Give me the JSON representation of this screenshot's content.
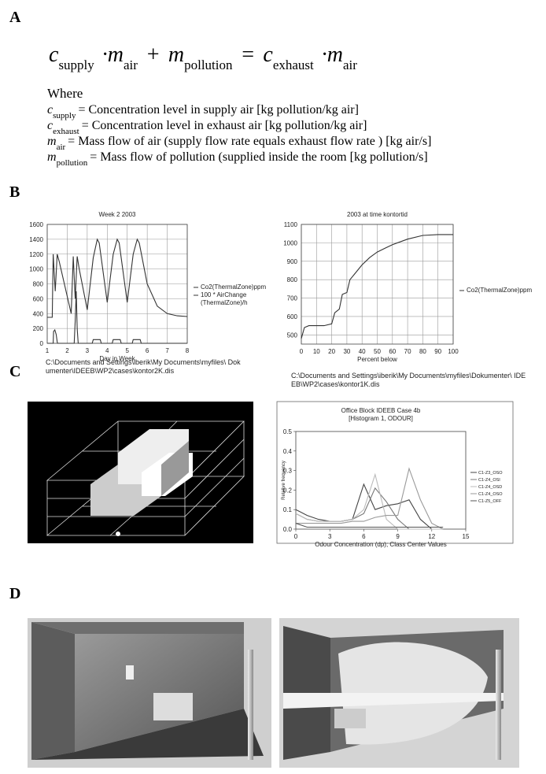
{
  "panels": {
    "a": "A",
    "b": "B",
    "c": "C",
    "d": "D"
  },
  "equation": [
    {
      "text": "c",
      "sub": "supply"
    },
    {
      "text": "·m",
      "sub": "air"
    },
    {
      "text": "+"
    },
    {
      "text": "m",
      "sub": "pollution"
    },
    {
      "text": "="
    },
    {
      "text": "c",
      "sub": "exhaust"
    },
    {
      "text": "·m",
      "sub": "air"
    }
  ],
  "where": {
    "title": "Where",
    "lines": [
      {
        "symbol": "c",
        "sub": "supply",
        "text": "= Concentration level in supply air [kg pollution/kg air]"
      },
      {
        "symbol": "c",
        "sub": "exhaust",
        "text": "= Concentration level in exhaust air [kg pollution/kg air]"
      },
      {
        "symbol": "m",
        "sub": "air",
        "text": "= Mass flow of air (supply flow rate equals exhaust flow rate ) [kg air/s]"
      },
      {
        "symbol": "m",
        "sub": "pollution",
        "text": "= Mass flow of pollution (supplied inside the room [kg pollution/s]"
      }
    ]
  },
  "chart_data": [
    {
      "type": "line",
      "title": "Week 2 2003",
      "x_label": "Day in Week",
      "xlim": [
        1,
        8
      ],
      "xticks": [
        1,
        2,
        3,
        4,
        5,
        6,
        7,
        8
      ],
      "ylim": [
        0,
        1600
      ],
      "yticks": [
        0,
        200,
        400,
        600,
        800,
        1000,
        1200,
        1400,
        1600
      ],
      "grid": true,
      "legend": "right",
      "series": [
        {
          "name": "Co2(ThermalZone)ppm",
          "color": "#333333",
          "x": [
            1,
            1.25,
            1.3,
            1.4,
            1.5,
            1.6,
            2.2,
            2.3,
            2.4,
            2.5,
            2.6,
            3.0,
            3.3,
            3.5,
            3.6,
            4.0,
            4.3,
            4.5,
            4.6,
            5.0,
            5.3,
            5.5,
            5.6,
            6.0,
            6.5,
            7.0,
            7.5,
            8.0
          ],
          "values": [
            350,
            350,
            1200,
            700,
            1200,
            1100,
            400,
            1170,
            600,
            1170,
            1000,
            450,
            1150,
            1400,
            1350,
            550,
            1200,
            1400,
            1350,
            550,
            1200,
            1400,
            1350,
            800,
            500,
            400,
            370,
            360
          ]
        },
        {
          "name": "100 * AirChange (ThermalZone)/h",
          "color": "#333333",
          "x": [
            1,
            1.3,
            1.32,
            1.38,
            1.45,
            1.5,
            1.52,
            2.35,
            2.4,
            2.45,
            2.5,
            2.55,
            3.25,
            3.3,
            3.65,
            3.7,
            4.25,
            4.3,
            4.65,
            4.7,
            5.25,
            5.3,
            5.65,
            5.7,
            8
          ],
          "values": [
            0,
            0,
            160,
            180,
            120,
            20,
            0,
            0,
            300,
            700,
            200,
            0,
            0,
            50,
            50,
            0,
            0,
            50,
            50,
            0,
            0,
            50,
            50,
            0,
            0
          ]
        }
      ]
    },
    {
      "type": "line",
      "title": "2003 at time kontortid",
      "x_label": "Percent below",
      "xlim": [
        0,
        100
      ],
      "xticks": [
        0,
        10,
        20,
        30,
        40,
        50,
        60,
        70,
        80,
        90,
        100
      ],
      "ylim": [
        450,
        1100
      ],
      "yticks": [
        500,
        600,
        700,
        800,
        900,
        1000,
        1100
      ],
      "grid": true,
      "legend": "right",
      "series": [
        {
          "name": "Co2(ThermalZone)ppm",
          "color": "#333333",
          "x": [
            0,
            2,
            5,
            10,
            15,
            20,
            22,
            25,
            27,
            30,
            32,
            35,
            38,
            40,
            45,
            50,
            55,
            60,
            70,
            80,
            90,
            100
          ],
          "values": [
            480,
            540,
            550,
            550,
            550,
            560,
            620,
            640,
            720,
            730,
            800,
            830,
            860,
            880,
            920,
            950,
            970,
            990,
            1020,
            1040,
            1045,
            1045
          ]
        }
      ]
    },
    {
      "type": "line",
      "title": "Office Block IDEEB Case 4b",
      "subtitle": "[Histogram 1, ODOUR]",
      "x_label": "Odour Concentration (dp); Class Center Values",
      "y_label": "Relative frequency",
      "x": [
        0,
        1,
        2,
        3,
        4,
        5,
        6,
        7,
        8,
        9,
        10,
        11,
        12,
        13
      ],
      "xlim": [
        0,
        15
      ],
      "xticks": [
        0,
        3,
        6,
        9,
        12,
        15
      ],
      "ylim": [
        0,
        0.5
      ],
      "yticks": [
        {
          "value": 0,
          "label": "0.0"
        },
        0.1,
        0.2,
        0.3,
        0.4,
        0.5
      ],
      "grid": false,
      "legend": "right",
      "series": [
        {
          "name": "C1-Z3_OSO",
          "color": "#444444",
          "values": [
            0.1,
            0.07,
            0.05,
            0.04,
            0.04,
            0.05,
            0.23,
            0.1,
            0.12,
            0.13,
            0.15,
            0.05,
            0,
            0
          ]
        },
        {
          "name": "C1-Z4_OSI",
          "color": "#777777",
          "values": [
            0.08,
            0.05,
            0.04,
            0.04,
            0.04,
            0.05,
            0.08,
            0.21,
            0.14,
            0.05,
            0,
            0,
            0,
            0
          ]
        },
        {
          "name": "C1-Z4_OSD",
          "color": "#bbbbbb",
          "values": [
            0.08,
            0.05,
            0.04,
            0.04,
            0.04,
            0.05,
            0.1,
            0.28,
            0.05,
            0,
            0,
            0,
            0,
            0
          ]
        },
        {
          "name": "C1-Z4_OSO",
          "color": "#999999",
          "values": [
            0.03,
            0.03,
            0.03,
            0.03,
            0.03,
            0.04,
            0.04,
            0.06,
            0.07,
            0.07,
            0.31,
            0.15,
            0.03,
            0
          ]
        },
        {
          "name": "C1-Z5_OFF",
          "color": "#555555",
          "values": [
            0.03,
            0.01,
            0.01,
            0.01,
            0.01,
            0.01,
            0.01,
            0.01,
            0.01,
            0.01,
            0.01,
            0.01,
            0.01,
            0.01
          ]
        }
      ]
    }
  ],
  "captions": {
    "b_left": "C:\\Documents and Settings\\iberik\\My Documents\\myfiles\\ Dokumenter\\IDEEB\\WP2\\cases\\kontor2K.dis",
    "b_right": "C:\\Documents and Settings\\iberik\\My Documents\\myfiles\\Dokumenter\\ IDEEB\\WP2\\cases\\kontor1K.dis"
  }
}
